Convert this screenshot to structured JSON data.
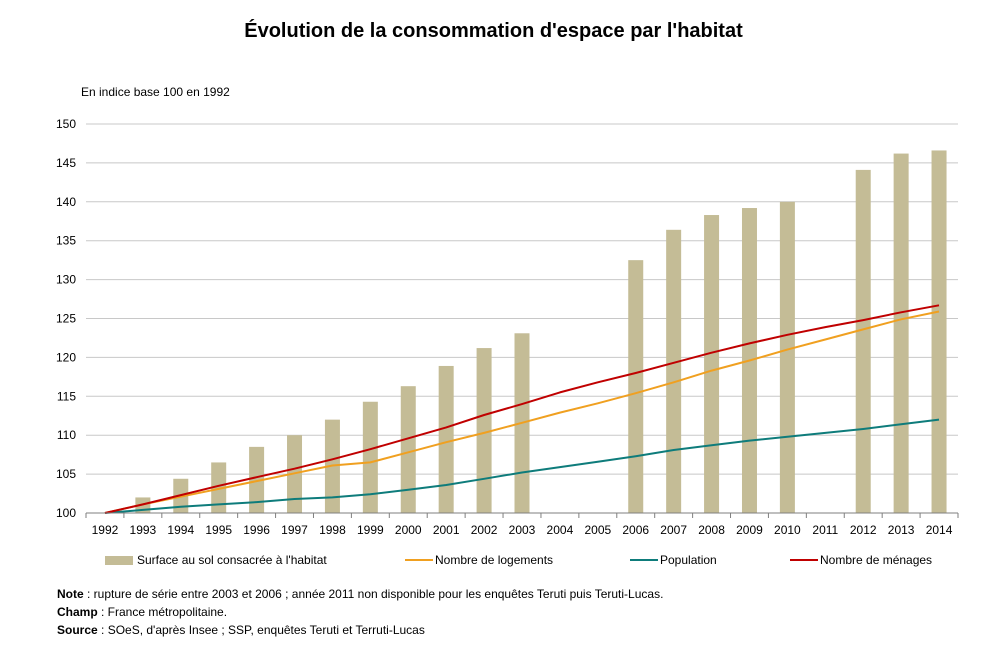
{
  "chart_data": {
    "type": "bar",
    "title": "Évolution de la consommation d'espace par l'habitat",
    "unit_label": "En indice base 100 en 1992",
    "categories": [
      "1992",
      "1993",
      "1994",
      "1995",
      "1996",
      "1997",
      "1998",
      "1999",
      "2000",
      "2001",
      "2002",
      "2003",
      "2004",
      "2005",
      "2006",
      "2007",
      "2008",
      "2009",
      "2010",
      "2011",
      "2012",
      "2013",
      "2014"
    ],
    "ylim": [
      100,
      150
    ],
    "yticks": [
      100,
      105,
      110,
      115,
      120,
      125,
      130,
      135,
      140,
      145,
      150
    ],
    "grid": true,
    "legend_position": "bottom",
    "bar_series": {
      "name": "Surface au sol consacrée à l'habitat",
      "color": "#c4bc96",
      "values": [
        100,
        102.0,
        104.4,
        106.5,
        108.5,
        110.0,
        112.0,
        114.3,
        116.3,
        118.9,
        121.2,
        123.1,
        null,
        null,
        132.5,
        136.4,
        138.3,
        139.2,
        140.0,
        null,
        144.1,
        146.2,
        146.6
      ]
    },
    "series": [
      {
        "name": "Nombre de logements",
        "type": "line",
        "color": "#f0a020",
        "values": [
          100,
          101.1,
          102.1,
          103.1,
          104.1,
          105.1,
          106.1,
          106.5,
          107.8,
          109.1,
          110.3,
          111.6,
          112.9,
          114.1,
          115.4,
          116.8,
          118.3,
          119.6,
          121.0,
          122.3,
          123.6,
          124.9,
          125.9
        ]
      },
      {
        "name": "Population",
        "type": "line",
        "color": "#0e7c7b",
        "values": [
          100,
          100.4,
          100.8,
          101.1,
          101.4,
          101.8,
          102.0,
          102.4,
          103.0,
          103.6,
          104.4,
          105.2,
          105.9,
          106.6,
          107.3,
          108.1,
          108.7,
          109.3,
          109.8,
          110.3,
          110.8,
          111.4,
          112.0
        ]
      },
      {
        "name": "Nombre de ménages",
        "type": "line",
        "color": "#c00000",
        "values": [
          100,
          101.1,
          102.3,
          103.5,
          104.6,
          105.7,
          106.9,
          108.2,
          109.6,
          111.0,
          112.6,
          114.0,
          115.5,
          116.8,
          118.0,
          119.3,
          120.6,
          121.8,
          122.9,
          123.9,
          124.8,
          125.8,
          126.7
        ]
      }
    ]
  },
  "notes": [
    {
      "label": "Note",
      "text": " : rupture de série entre 2003 et 2006 ; année 2011 non disponible pour les enquêtes Teruti puis Teruti-Lucas."
    },
    {
      "label": "Champ",
      "text": " : France métropolitaine."
    },
    {
      "label": "Source",
      "text": " : SOeS, d'après Insee ; SSP, enquêtes Teruti et  Terruti-Lucas"
    }
  ]
}
